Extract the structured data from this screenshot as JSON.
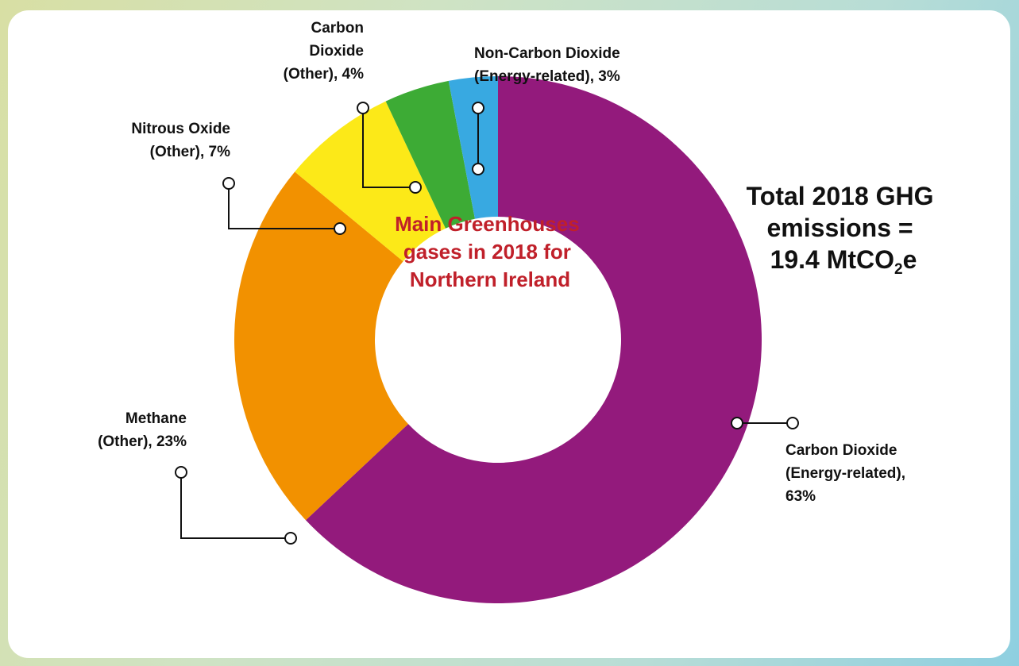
{
  "chart_data": {
    "type": "pie",
    "variant": "donut",
    "center_text": [
      "Main Greenhouses",
      "gases in 2018 for",
      "Northern Ireland"
    ],
    "total": {
      "line1": "Total 2018 GHG",
      "line2": "emissions =",
      "line3_prefix": "19.4 MtCO",
      "line3_sub": "2",
      "line3_suffix": "e",
      "value": 19.4,
      "unit": "MtCO2e"
    },
    "slices": [
      {
        "name": "Carbon Dioxide (Energy-related)",
        "value": 63,
        "color": "#931a7c",
        "label_lines": [
          "Carbon Dioxide",
          "(Energy-related),",
          "63%"
        ]
      },
      {
        "name": "Methane (Other)",
        "value": 23,
        "color": "#f29100",
        "label_lines": [
          "Methane",
          "(Other), 23%"
        ]
      },
      {
        "name": "Nitrous Oxide (Other)",
        "value": 7,
        "color": "#fce918",
        "label_lines": [
          "Nitrous Oxide",
          "(Other), 7%"
        ]
      },
      {
        "name": "Carbon Dioxide (Other)",
        "value": 4,
        "color": "#3dab35",
        "label_lines": [
          "Carbon",
          "Dioxide",
          "(Other), 4%"
        ]
      },
      {
        "name": "Non-Carbon Dioxide (Energy-related)",
        "value": 3,
        "color": "#38a9e1",
        "label_lines": [
          "Non-Carbon Dioxide",
          "(Energy-related), 3%"
        ]
      }
    ]
  }
}
